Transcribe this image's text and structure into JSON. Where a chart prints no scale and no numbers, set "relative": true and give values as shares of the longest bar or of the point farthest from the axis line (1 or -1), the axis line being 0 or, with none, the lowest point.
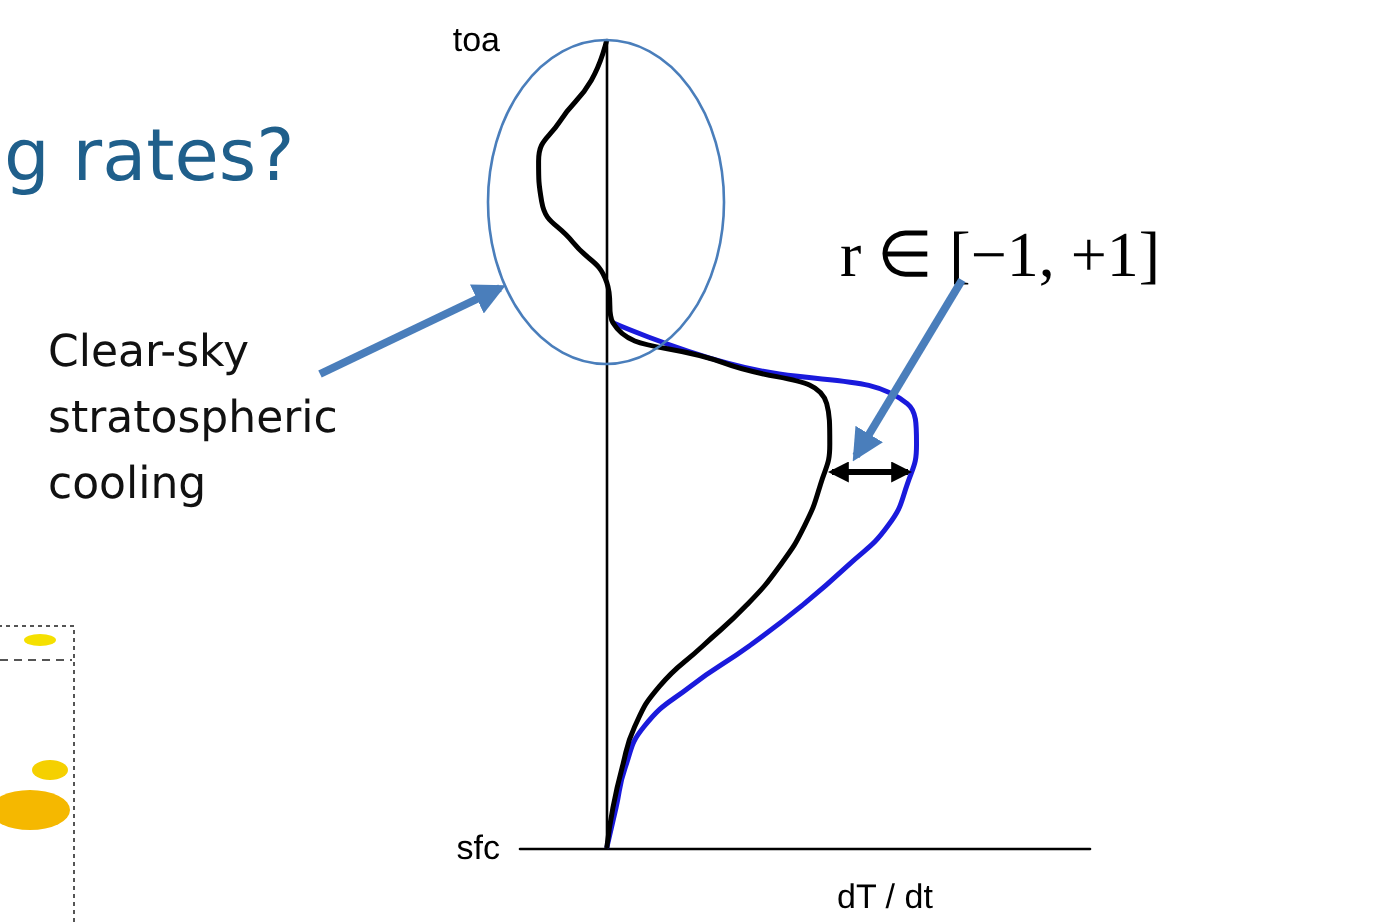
{
  "chart_data": {
    "type": "line",
    "title": "g rates?",
    "xlabel": "dT / dt",
    "relative": true,
    "orientation": "horizontal",
    "marker": "none",
    "categories": [
      "toa",
      null,
      null,
      null,
      null,
      null,
      null,
      null,
      null,
      null,
      null,
      null,
      null,
      null,
      null,
      null,
      null,
      null,
      null,
      null,
      "sfc"
    ],
    "annotations": [
      "Clear-sky stratospheric cooling",
      "r ∈ [−1, +1]"
    ],
    "series": [
      {
        "color": "#1a1adc",
        "values": [
          null,
          null,
          null,
          null,
          null,
          null,
          null,
          0.02,
          0.39,
          0.97,
          1.0,
          0.97,
          0.91,
          0.78,
          0.63,
          0.46,
          0.27,
          0.12,
          0.06,
          0.03,
          0
        ]
      },
      {
        "color": "#000000",
        "values": [
          0,
          -0.05,
          -0.15,
          -0.22,
          -0.21,
          -0.11,
          0,
          0.02,
          0.38,
          0.71,
          0.72,
          0.69,
          0.64,
          0.56,
          0.45,
          0.31,
          0.17,
          0.09,
          0.05,
          0.02,
          0
        ]
      }
    ]
  }
}
